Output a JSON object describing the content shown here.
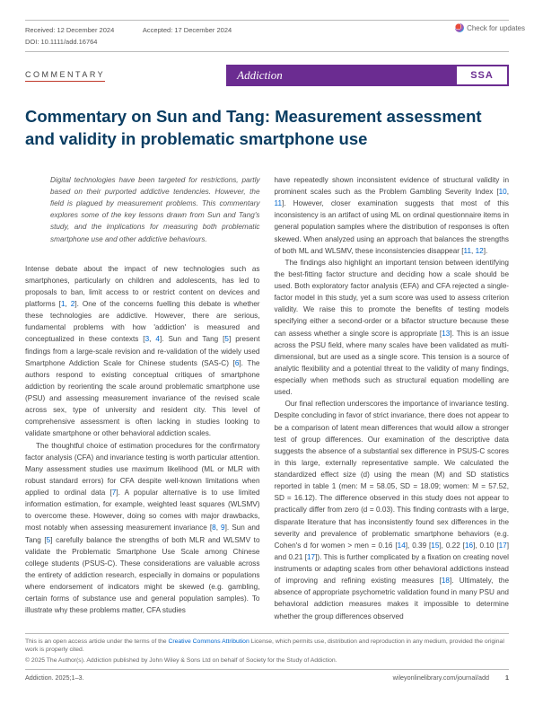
{
  "checkUpdates": "Check for updates",
  "meta": {
    "receivedLabel": "Received:",
    "receivedDate": "12 December 2024",
    "acceptedLabel": "Accepted:",
    "acceptedDate": "17 December 2024",
    "doi": "DOI: 10.1111/add.16764"
  },
  "labels": {
    "commentary": "COMMENTARY",
    "journal": "Addiction",
    "society": "SSA"
  },
  "title": "Commentary on Sun and Tang: Measurement assessment and validity in problematic smartphone use",
  "abstract": "Digital technologies have been targeted for restrictions, partly based on their purported addictive tendencies. However, the field is plagued by measurement problems. This commentary explores some of the key lessons drawn from Sun and Tang's study, and the implications for measuring both problematic smartphone use and other addictive behaviours.",
  "left": {
    "p1a": "Intense debate about the impact of new technologies such as smartphones, particularly on children and adolescents, has led to proposals to ban, limit access to or restrict content on devices and platforms [",
    "r1": "1",
    "p1b": ", ",
    "r2": "2",
    "p1c": "]. One of the concerns fuelling this debate is whether these technologies are addictive. However, there are serious, fundamental problems with how 'addiction' is measured and conceptualized in these contexts [",
    "r3": "3",
    "p1d": ", ",
    "r4": "4",
    "p1e": "]. Sun and Tang [",
    "r5": "5",
    "p1f": "] present findings from a large-scale revision and re-validation of the widely used Smartphone Addiction Scale for Chinese students (SAS-C) [",
    "r6": "6",
    "p1g": "]. The authors respond to existing conceptual critiques of smartphone addiction by reorienting the scale around problematic smartphone use (PSU) and assessing measurement invariance of the revised scale across sex, type of university and resident city. This level of comprehensive assessment is often lacking in studies looking to validate smartphone or other behavioral addiction scales.",
    "p2a": "The thoughtful choice of estimation procedures for the confirmatory factor analysis (CFA) and invariance testing is worth particular attention. Many assessment studies use maximum likelihood (ML or MLR with robust standard errors) for CFA despite well-known limitations when applied to ordinal data [",
    "r7": "7",
    "p2b": "]. A popular alternative is to use limited information estimation, for example, weighted least squares (WLSMV) to overcome these. However, doing so comes with major drawbacks, most notably when assessing measurement invariance [",
    "r8": "8",
    "p2c": ", ",
    "r9": "9",
    "p2d": "]. Sun and Tang [",
    "r5b": "5",
    "p2e": "] carefully balance the strengths of both MLR and WLSMV to validate the Problematic Smartphone Use Scale among Chinese college students (PSUS-C). These considerations are valuable across the entirety of addiction research, especially in domains or populations where endorsement of indicators might be skewed (e.g. gambling, certain forms of substance use and general population samples). To illustrate why these problems matter, CFA studies"
  },
  "right": {
    "p1a": "have repeatedly shown inconsistent evidence of structural validity in prominent scales such as the Problem Gambling Severity Index [",
    "r10": "10",
    "p1b": ", ",
    "r11": "11",
    "p1c": "]. However, closer examination suggests that most of this inconsistency is an artifact of using ML on ordinal questionnaire items in general population samples where the distribution of responses is often skewed. When analyzed using an approach that balances the strengths of both ML and WLSMV, these inconsistencies disappear [",
    "r11b": "11",
    "p1d": ", ",
    "r12": "12",
    "p1e": "].",
    "p2a": "The findings also highlight an important tension between identifying the best-fitting factor structure and deciding how a scale should be used. Both exploratory factor analysis (EFA) and CFA rejected a single-factor model in this study, yet a sum score was used to assess criterion validity. We raise this to promote the benefits of testing models specifying either a second-order or a bifactor structure because these can assess whether a single score is appropriate [",
    "r13": "13",
    "p2b": "]. This is an issue across the PSU field, where many scales have been validated as multi-dimensional, but are used as a single score. This tension is a source of analytic flexibility and a potential threat to the validity of many findings, especially when methods such as structural equation modelling are used.",
    "p3a": "Our final reflection underscores the importance of invariance testing. Despite concluding in favor of strict invariance, there does not appear to be a comparison of latent mean differences that would allow a stronger test of group differences. Our examination of the descriptive data suggests the absence of a substantial sex difference in PSUS-C scores in this large, externally representative sample. We calculated the standardized effect size (d) using the mean (M) and SD statistics reported in table 1 (men: M = 58.05, SD = 18.09; women: M = 57.52, SD = 16.12). The difference observed in this study does not appear to practically differ from zero (d = 0.03). This finding contrasts with a large, disparate literature that has inconsistently found sex differences in the severity and prevalence of problematic smartphone behaviors (e.g. Cohen's d for women > men = 0.16 [",
    "r14": "14",
    "p3b": "], 0.39 [",
    "r15": "15",
    "p3c": "], 0.22 [",
    "r16": "16",
    "p3d": "], 0.10 [",
    "r17": "17",
    "p3e": "] and 0.21 [",
    "r17b": "17",
    "p3f": "]). This is further complicated by a fixation on creating novel instruments or adapting scales from other behavioral addictions instead of improving and refining existing measures [",
    "r18": "18",
    "p3g": "]. Ultimately, the absence of appropriate psychometric validation found in many PSU and behavioral addiction measures makes it impossible to determine whether the group differences observed"
  },
  "footer": {
    "license1": "This is an open access article under the terms of the ",
    "licenseLink": "Creative Commons Attribution",
    "license2": " License, which permits use, distribution and reproduction in any medium, provided the original work is properly cited.",
    "copyright": "© 2025 The Author(s). Addiction published by John Wiley & Sons Ltd on behalf of Society for the Study of Addiction.",
    "citation": "Addiction. 2025;1–3.",
    "url": "wileyonlinelibrary.com/journal/add",
    "page": "1"
  }
}
